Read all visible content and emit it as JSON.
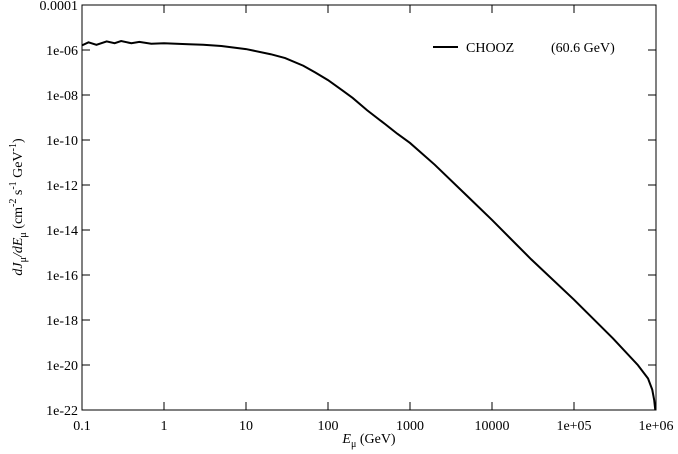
{
  "chart_data": {
    "type": "line",
    "x_label_parts": [
      {
        "text": "E",
        "role": "italic"
      },
      {
        "text": "μ",
        "role": "sub"
      },
      {
        "text": " (GeV)",
        "role": "normal"
      }
    ],
    "y_label_parts": [
      {
        "text": "dJ",
        "role": "italic"
      },
      {
        "text": "μ",
        "role": "sub"
      },
      {
        "text": "/dE",
        "role": "italic"
      },
      {
        "text": "μ",
        "role": "sub"
      },
      {
        "text": "  (cm",
        "role": "normal"
      },
      {
        "text": "-2",
        "role": "sup"
      },
      {
        "text": " s",
        "role": "normal"
      },
      {
        "text": "-1",
        "role": "sup"
      },
      {
        "text": " GeV",
        "role": "normal"
      },
      {
        "text": "-1",
        "role": "sup"
      },
      {
        "text": ")",
        "role": "normal"
      }
    ],
    "annotation": "(60.6 GeV)",
    "xscale": "log",
    "yscale": "log",
    "xlim": [
      0.1,
      1000000
    ],
    "ylim": [
      1e-22,
      0.0001
    ],
    "xticks": [
      0.1,
      1,
      10,
      100,
      1000,
      10000,
      {
        "value": 100000,
        "label": "1e+05"
      },
      {
        "value": 1000000,
        "label": "1e+06"
      }
    ],
    "yticks": [
      {
        "value": 1e-22,
        "label": "1e-22"
      },
      {
        "value": 1e-20,
        "label": "1e-20"
      },
      {
        "value": 1e-18,
        "label": "1e-18"
      },
      {
        "value": 1e-16,
        "label": "1e-16"
      },
      {
        "value": 1e-14,
        "label": "1e-14"
      },
      {
        "value": 1e-12,
        "label": "1e-12"
      },
      {
        "value": 1e-10,
        "label": "1e-10"
      },
      {
        "value": 1e-08,
        "label": "1e-08"
      },
      {
        "value": 1e-06,
        "label": "1e-06"
      },
      0.0001
    ],
    "legend": "upper right",
    "x": [
      0.1,
      0.12,
      0.15,
      0.2,
      0.25,
      0.3,
      0.4,
      0.5,
      0.7,
      1,
      2,
      3,
      5,
      10,
      20,
      30,
      50,
      70,
      100,
      150,
      200,
      300,
      500,
      700,
      1000,
      2000,
      5000,
      10000,
      30000,
      100000,
      300000,
      600000,
      800000,
      900000,
      950000,
      980000
    ],
    "series": [
      {
        "name": "CHOOZ",
        "color": "#000000",
        "values": [
          1.6e-06,
          2.2e-06,
          1.7e-06,
          2.4e-06,
          2e-06,
          2.5e-06,
          2e-06,
          2.3e-06,
          1.9e-06,
          2e-06,
          1.8e-06,
          1.7e-06,
          1.5e-06,
          1.1e-06,
          6.5e-07,
          4.4e-07,
          2e-07,
          1e-07,
          4.6e-08,
          1.6e-08,
          7.4e-09,
          2.1e-09,
          5e-10,
          1.9e-10,
          7.4e-11,
          8e-12,
          3.2e-13,
          2.8e-14,
          5e-16,
          8e-18,
          1.5e-19,
          1e-20,
          2.5e-21,
          8e-22,
          2.8e-22,
          1e-22
        ]
      }
    ]
  }
}
